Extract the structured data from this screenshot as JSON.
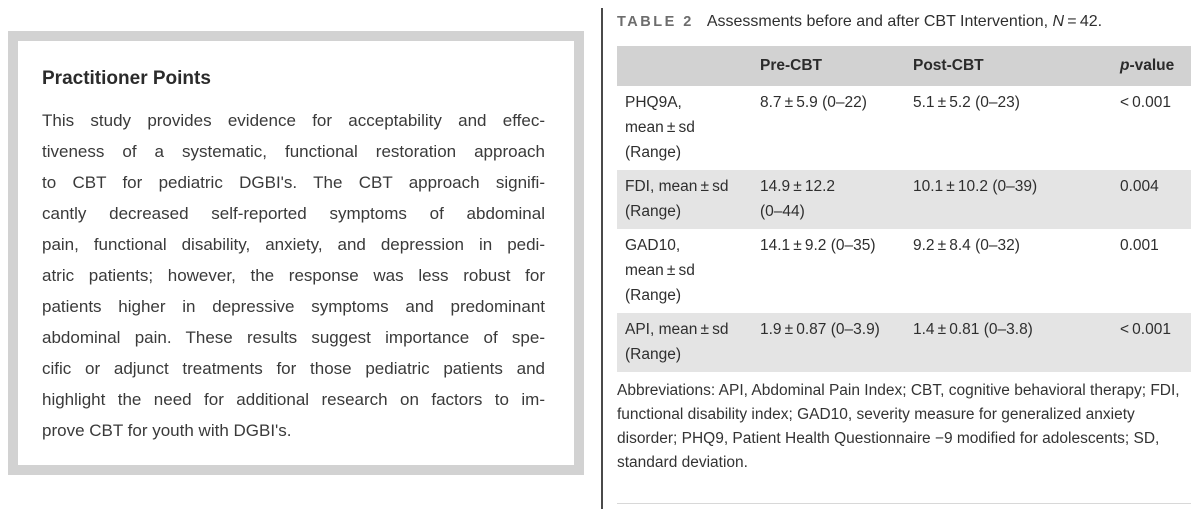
{
  "practitioner_box": {
    "title": "Practitioner Points",
    "lines": [
      "This study provides evidence for acceptability and effec-",
      "tiveness of a systematic, functional restoration approach",
      "to CBT for pediatric DGBI's. The CBT approach signifi-",
      "cantly decreased self-reported symptoms of abdominal",
      "pain, functional disability, anxiety, and depression in pedi-",
      "atric patients; however, the response was less robust for",
      "patients higher in depressive symptoms and predominant",
      "abdominal pain. These results suggest importance of spe-",
      "cific or adjunct treatments for those pediatric patients and",
      "highlight the need for additional research on factors to im-",
      "prove CBT for youth with DGBI's."
    ]
  },
  "table": {
    "label": "TABLE 2",
    "caption": "Assessments before and after CBT Intervention,",
    "n_italic": "N",
    "n_rest": " = 42.",
    "columns": {
      "pre": "Pre-CBT",
      "post": "Post-CBT",
      "p_italic": "p",
      "p_rest": "-value"
    },
    "rows": [
      {
        "label": "PHQ9A,\nmean ± sd\n(Range)",
        "pre": "8.7 ± 5.9 (0–22)",
        "post": "5.1 ± 5.2 (0–23)",
        "p": "< 0.001"
      },
      {
        "label": "FDI, mean ± sd\n(Range)",
        "pre": "14.9 ± 12.2\n(0–44)",
        "post": "10.1 ± 10.2 (0–39)",
        "p": "0.004"
      },
      {
        "label": "GAD10,\nmean ± sd\n(Range)",
        "pre": "14.1 ± 9.2 (0–35)",
        "post": "9.2 ± 8.4 (0–32)",
        "p": "0.001"
      },
      {
        "label": "API, mean ± sd\n(Range)",
        "pre": "1.9 ± 0.87 (0–3.9)",
        "post": "1.4 ± 0.81 (0–3.8)",
        "p": "< 0.001"
      }
    ],
    "footnote": "Abbreviations: API, Abdominal Pain Index; CBT, cognitive behavioral therapy; FDI, functional disability index; GAD10, severity measure for generalized anxiety disorder; PHQ9, Patient Health Questionnaire −9 modified for adolescents; SD, standard deviation."
  },
  "colors": {
    "box_border": "#d2d2d2",
    "header_band": "#d2d2d2",
    "row_stripe": "#e4e4e4",
    "divider": "#4a4a4a",
    "ink": "#333333",
    "table_label": "#6d6d6d"
  }
}
